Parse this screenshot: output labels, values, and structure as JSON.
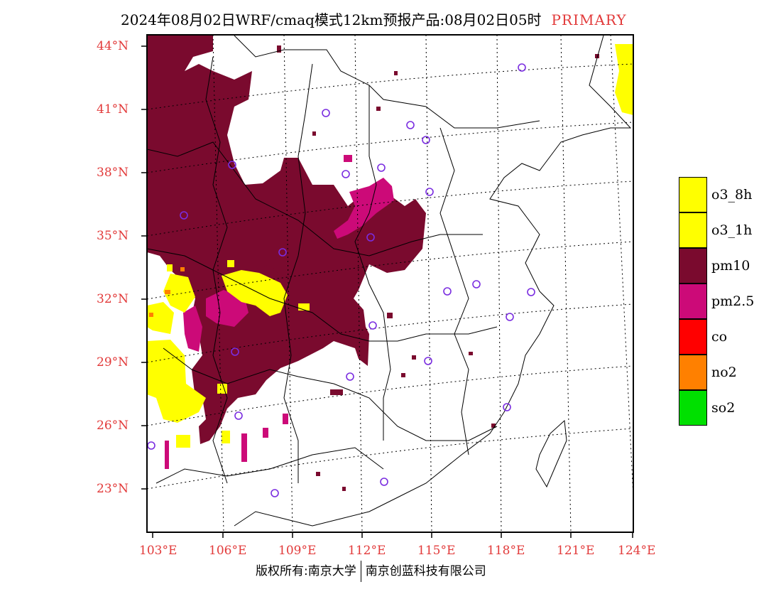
{
  "header": {
    "title": "2024年08月02日WRF/cmaq模式12km预报产品:08月02日05时",
    "mode": "PRIMARY"
  },
  "map": {
    "lon_ticks": [
      "103°E",
      "106°E",
      "109°E",
      "112°E",
      "115°E",
      "118°E",
      "121°E",
      "124°E"
    ],
    "lat_ticks": [
      "44°N",
      "41°N",
      "38°N",
      "35°N",
      "32°N",
      "29°N",
      "26°N",
      "23°N"
    ],
    "colors": {
      "pm10": "#7a0a2e",
      "pm25": "#cc0a78",
      "o3": "#ffff00",
      "no2": "#ff8000",
      "tick_label": "#e23a3a",
      "station": "#7a2de0"
    }
  },
  "legend": {
    "items": [
      {
        "label": "o3_8h",
        "color": "#ffff00"
      },
      {
        "label": "o3_1h",
        "color": "#ffff00"
      },
      {
        "label": "pm10",
        "color": "#7a0a2e"
      },
      {
        "label": "pm2.5",
        "color": "#cc0a78"
      },
      {
        "label": "co",
        "color": "#ff0000"
      },
      {
        "label": "no2",
        "color": "#ff8000"
      },
      {
        "label": "so2",
        "color": "#00e000"
      }
    ]
  },
  "footer": {
    "left": "版权所有:南京大学",
    "right": "南京创蓝科技有限公司"
  }
}
